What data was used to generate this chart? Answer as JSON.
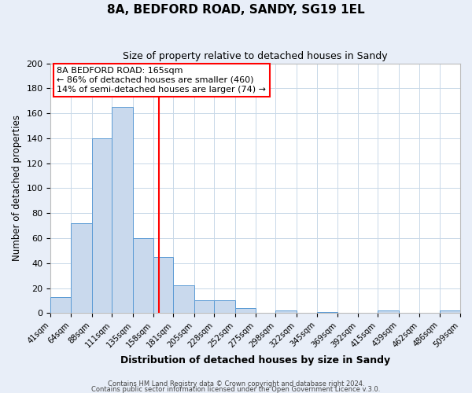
{
  "title": "8A, BEDFORD ROAD, SANDY, SG19 1EL",
  "subtitle": "Size of property relative to detached houses in Sandy",
  "xlabel": "Distribution of detached houses by size in Sandy",
  "ylabel": "Number of detached properties",
  "bin_labels": [
    "41sqm",
    "64sqm",
    "88sqm",
    "111sqm",
    "135sqm",
    "158sqm",
    "181sqm",
    "205sqm",
    "228sqm",
    "252sqm",
    "275sqm",
    "298sqm",
    "322sqm",
    "345sqm",
    "369sqm",
    "392sqm",
    "415sqm",
    "439sqm",
    "462sqm",
    "486sqm",
    "509sqm"
  ],
  "bin_values": [
    13,
    72,
    140,
    165,
    60,
    45,
    22,
    10,
    10,
    4,
    0,
    2,
    0,
    1,
    0,
    0,
    2,
    0,
    0,
    2,
    0
  ],
  "bin_edges": [
    41,
    64,
    88,
    111,
    135,
    158,
    181,
    205,
    228,
    252,
    275,
    298,
    322,
    345,
    369,
    392,
    415,
    439,
    462,
    486,
    509
  ],
  "bar_color": "#c9d9ed",
  "bar_edge_color": "#5b9bd5",
  "grid_color": "#c8d8e8",
  "red_line_x": 165,
  "annotation_lines": [
    "8A BEDFORD ROAD: 165sqm",
    "← 86% of detached houses are smaller (460)",
    "14% of semi-detached houses are larger (74) →"
  ],
  "ylim": [
    0,
    200
  ],
  "yticks": [
    0,
    20,
    40,
    60,
    80,
    100,
    120,
    140,
    160,
    180,
    200
  ],
  "footer_lines": [
    "Contains HM Land Registry data © Crown copyright and database right 2024.",
    "Contains public sector information licensed under the Open Government Licence v.3.0."
  ],
  "fig_background": "#e8eef8",
  "plot_background": "#ffffff"
}
